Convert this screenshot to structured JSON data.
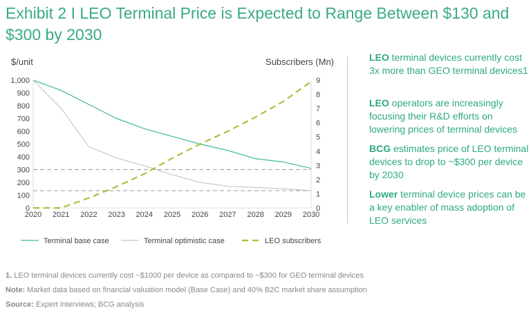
{
  "title": "Exhibit 2 I LEO Terminal Price is Expected to Range Between $130 and $300 by 2030",
  "chart_data": {
    "type": "line",
    "x": [
      2020,
      2021,
      2022,
      2023,
      2024,
      2025,
      2026,
      2027,
      2028,
      2029,
      2030
    ],
    "ylabel": "$/unit",
    "y2label": "Subscribers (Mn)",
    "ylim": [
      0,
      1000
    ],
    "y2lim": [
      0,
      9
    ],
    "yticks": [
      "0",
      "100",
      "200",
      "300",
      "400",
      "500",
      "600",
      "700",
      "800",
      "900",
      "1,000"
    ],
    "y2ticks": [
      "0",
      "1",
      "2",
      "3",
      "4",
      "5",
      "6",
      "7",
      "8",
      "9"
    ],
    "series": [
      {
        "name": "Terminal base case",
        "axis": "left",
        "color": "#3dbb94",
        "values": [
          1000,
          920,
          810,
          700,
          620,
          560,
          500,
          450,
          385,
          360,
          310
        ]
      },
      {
        "name": "Terminal optimistic case",
        "axis": "left",
        "color": "#c8c8c8",
        "values": [
          1000,
          780,
          480,
          390,
          330,
          260,
          200,
          170,
          160,
          150,
          135
        ]
      },
      {
        "name": "LEO subscribers",
        "axis": "right",
        "color": "#a6c13c",
        "dashed": true,
        "values": [
          0,
          0,
          0.7,
          1.5,
          2.4,
          3.5,
          4.5,
          5.4,
          6.4,
          7.5,
          8.9
        ]
      }
    ],
    "reference_lines": [
      300,
      135
    ]
  },
  "side": [
    {
      "bold": "LEO",
      "text": " terminal devices currently cost 3x more than GEO terminal devices1"
    },
    {
      "bold": "LEO",
      "text": " operators are increasingly focusing their R&D efforts on lowering prices of terminal devices"
    },
    {
      "bold": "BCG",
      "text": " estimates price of LEO terminal devices to drop to ~$300 per device by 2030"
    },
    {
      "bold": "Lower",
      "text": " terminal device prices can be a key enabler of mass adoption of LEO services"
    }
  ],
  "footnotes": [
    {
      "bold": "1.",
      "text": " LEO terminal devices currently cost ~$1000 per device as compared to ~$300 for GEO terminal devices"
    },
    {
      "bold": "Note:",
      "text": " Market data based on financial valuation model (Base Case) and 40% B2C market share assumption"
    },
    {
      "bold": "Source:",
      "text": " Expert interviews; BCG analysis"
    }
  ]
}
